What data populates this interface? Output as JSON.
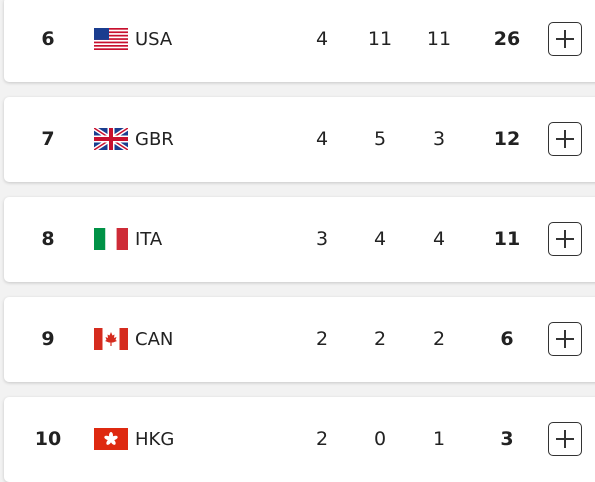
{
  "table": {
    "rows": [
      [
        6,
        "USA",
        4,
        11,
        11,
        26
      ],
      [
        7,
        "GBR",
        4,
        5,
        3,
        12
      ],
      [
        8,
        "ITA",
        3,
        4,
        4,
        11
      ],
      [
        9,
        "CAN",
        2,
        2,
        2,
        6
      ],
      [
        10,
        "HKG",
        2,
        0,
        1,
        3
      ]
    ]
  }
}
